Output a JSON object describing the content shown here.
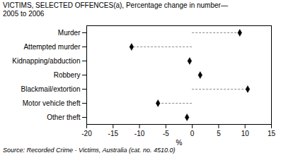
{
  "chart_data": {
    "type": "dot",
    "orientation": "horizontal",
    "title": "VICTIMS, SELECTED OFFENCES(a), Percentage change in number—",
    "subtitle": "2005 to 2006",
    "caption": "Source:  Recorded Crime - Victims, Australia (cat.  no.  4510.0)",
    "xlabel": "%",
    "categories": [
      "Murder",
      "Attempted murder",
      "Kidnapping/abduction",
      "Robbery",
      "Blackmail/extortion",
      "Motor vehicle theft",
      "Other theft"
    ],
    "series": [
      {
        "marker": "diamond",
        "line_style": "dashed",
        "values": [
          9.0,
          -11.5,
          null,
          null,
          10.5,
          -6.5,
          null
        ]
      },
      {
        "marker": "diamond",
        "line_style": "none",
        "values": [
          null,
          null,
          -0.5,
          1.5,
          null,
          null,
          -1.0
        ]
      }
    ],
    "xlim": [
      -20,
      15
    ],
    "xticks": [
      -20,
      -15,
      -10,
      -5,
      0,
      5,
      10,
      15
    ],
    "grid": false
  }
}
